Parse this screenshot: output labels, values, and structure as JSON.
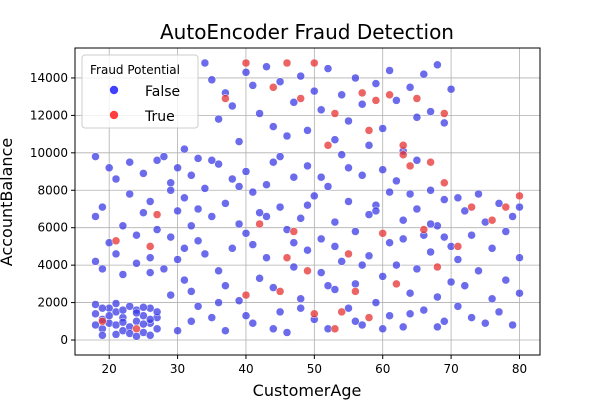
{
  "chart_data": {
    "type": "scatter",
    "title": "AutoEncoder Fraud Detection",
    "xlabel": "CustomerAge",
    "ylabel": "AccountBalance",
    "xlim": [
      15,
      83
    ],
    "ylim": [
      -800,
      15600
    ],
    "xticks": [
      20,
      30,
      40,
      50,
      60,
      70,
      80
    ],
    "yticks": [
      0,
      2000,
      4000,
      6000,
      8000,
      10000,
      12000,
      14000
    ],
    "grid": true,
    "legend": {
      "title": "Fraud Potential",
      "placement": "top-left",
      "entries": [
        {
          "label": "False",
          "color": "#0000ff"
        },
        {
          "label": "True",
          "color": "#ff0000"
        }
      ]
    },
    "colors": {
      "False": "#3a3ae6",
      "True": "#e63030",
      "edge": "#ffffff"
    },
    "series": [
      {
        "name": "False",
        "points": [
          [
            18,
            800
          ],
          [
            18,
            1400
          ],
          [
            19,
            600
          ],
          [
            19,
            1100
          ],
          [
            20,
            1700
          ],
          [
            20,
            900
          ],
          [
            21,
            300
          ],
          [
            21,
            1500
          ],
          [
            22,
            1200
          ],
          [
            22,
            500
          ],
          [
            23,
            1800
          ],
          [
            23,
            700
          ],
          [
            24,
            1000
          ],
          [
            24,
            1600
          ],
          [
            25,
            400
          ],
          [
            25,
            1300
          ],
          [
            26,
            900
          ],
          [
            26,
            1700
          ],
          [
            27,
            600
          ],
          [
            27,
            1200
          ],
          [
            18,
            1900
          ],
          [
            19,
            250
          ],
          [
            20,
            1300
          ],
          [
            21,
            800
          ],
          [
            22,
            1600
          ],
          [
            23,
            350
          ],
          [
            24,
            1450
          ],
          [
            25,
            850
          ],
          [
            26,
            250
          ],
          [
            27,
            1500
          ],
          [
            21,
            1950
          ],
          [
            24,
            200
          ],
          [
            26,
            1100
          ],
          [
            19,
            1700
          ],
          [
            22,
            950
          ],
          [
            25,
            1750
          ],
          [
            18,
            4200
          ],
          [
            18,
            6600
          ],
          [
            18,
            9800
          ],
          [
            19,
            3800
          ],
          [
            19,
            7100
          ],
          [
            20,
            5200
          ],
          [
            20,
            9200
          ],
          [
            21,
            4600
          ],
          [
            21,
            8600
          ],
          [
            22,
            6100
          ],
          [
            22,
            3500
          ],
          [
            23,
            7800
          ],
          [
            23,
            9500
          ],
          [
            24,
            5600
          ],
          [
            24,
            4100
          ],
          [
            25,
            6800
          ],
          [
            25,
            8900
          ],
          [
            26,
            4400
          ],
          [
            26,
            7400
          ],
          [
            27,
            5900
          ],
          [
            27,
            9600
          ],
          [
            26,
            3600
          ],
          [
            28,
            9800
          ],
          [
            28,
            3800
          ],
          [
            29,
            8400
          ],
          [
            29,
            5500
          ],
          [
            29,
            2400
          ],
          [
            30,
            9200
          ],
          [
            30,
            6900
          ],
          [
            30,
            4300
          ],
          [
            31,
            10200
          ],
          [
            31,
            7600
          ],
          [
            31,
            3200
          ],
          [
            32,
            8800
          ],
          [
            32,
            6100
          ],
          [
            32,
            2600
          ],
          [
            33,
            9700
          ],
          [
            33,
            5300
          ],
          [
            33,
            1800
          ],
          [
            34,
            14800
          ],
          [
            34,
            8100
          ],
          [
            34,
            4600
          ],
          [
            35,
            13900
          ],
          [
            35,
            6600
          ],
          [
            35,
            1200
          ],
          [
            36,
            11800
          ],
          [
            36,
            9400
          ],
          [
            36,
            3700
          ],
          [
            37,
            13200
          ],
          [
            37,
            7300
          ],
          [
            37,
            500
          ],
          [
            38,
            12500
          ],
          [
            38,
            8600
          ],
          [
            38,
            4900
          ],
          [
            39,
            10600
          ],
          [
            39,
            6200
          ],
          [
            39,
            2100
          ],
          [
            40,
            14300
          ],
          [
            40,
            9000
          ],
          [
            40,
            5700
          ],
          [
            41,
            13600
          ],
          [
            41,
            7900
          ],
          [
            41,
            900
          ],
          [
            42,
            12100
          ],
          [
            42,
            6800
          ],
          [
            42,
            3300
          ],
          [
            43,
            14600
          ],
          [
            43,
            8300
          ],
          [
            43,
            4400
          ],
          [
            44,
            11400
          ],
          [
            44,
            9500
          ],
          [
            44,
            2800
          ],
          [
            45,
            13800
          ],
          [
            45,
            7100
          ],
          [
            45,
            1500
          ],
          [
            46,
            10900
          ],
          [
            46,
            5900
          ],
          [
            46,
            400
          ],
          [
            47,
            12700
          ],
          [
            47,
            8700
          ],
          [
            47,
            3900
          ],
          [
            48,
            14100
          ],
          [
            48,
            6500
          ],
          [
            48,
            2200
          ],
          [
            49,
            11200
          ],
          [
            49,
            9300
          ],
          [
            49,
            4800
          ],
          [
            50,
            13300
          ],
          [
            50,
            7700
          ],
          [
            50,
            1100
          ],
          [
            51,
            12300
          ],
          [
            51,
            5400
          ],
          [
            51,
            3600
          ],
          [
            52,
            14500
          ],
          [
            52,
            8200
          ],
          [
            52,
            600
          ],
          [
            53,
            10700
          ],
          [
            53,
            6300
          ],
          [
            53,
            2700
          ],
          [
            54,
            13100
          ],
          [
            54,
            9900
          ],
          [
            54,
            4200
          ],
          [
            55,
            11700
          ],
          [
            55,
            7400
          ],
          [
            55,
            1700
          ],
          [
            56,
            14000
          ],
          [
            56,
            5800
          ],
          [
            56,
            3000
          ],
          [
            57,
            12600
          ],
          [
            57,
            8800
          ],
          [
            57,
            800
          ],
          [
            58,
            10400
          ],
          [
            58,
            6700
          ],
          [
            58,
            4500
          ],
          [
            59,
            13700
          ],
          [
            59,
            7200
          ],
          [
            59,
            2000
          ],
          [
            60,
            11300
          ],
          [
            60,
            9100
          ],
          [
            60,
            3400
          ],
          [
            61,
            14400
          ],
          [
            61,
            5200
          ],
          [
            61,
            1300
          ],
          [
            62,
            12800
          ],
          [
            62,
            8500
          ],
          [
            62,
            4000
          ],
          [
            63,
            10100
          ],
          [
            63,
            6400
          ],
          [
            63,
            700
          ],
          [
            64,
            13500
          ],
          [
            64,
            7800
          ],
          [
            64,
            2500
          ],
          [
            65,
            11900
          ],
          [
            65,
            9600
          ],
          [
            65,
            3800
          ],
          [
            66,
            14200
          ],
          [
            66,
            5600
          ],
          [
            66,
            1600
          ],
          [
            67,
            12200
          ],
          [
            67,
            8000
          ],
          [
            67,
            4700
          ],
          [
            68,
            14700
          ],
          [
            68,
            6100
          ],
          [
            68,
            2300
          ],
          [
            69,
            11600
          ],
          [
            69,
            7500
          ],
          [
            69,
            1000
          ],
          [
            70,
            13400
          ],
          [
            70,
            5000
          ],
          [
            70,
            3100
          ],
          [
            71,
            7600
          ],
          [
            71,
            4300
          ],
          [
            71,
            1800
          ],
          [
            72,
            6900
          ],
          [
            72,
            2900
          ],
          [
            73,
            5600
          ],
          [
            73,
            1200
          ],
          [
            74,
            7800
          ],
          [
            74,
            3700
          ],
          [
            75,
            6300
          ],
          [
            75,
            900
          ],
          [
            76,
            4900
          ],
          [
            76,
            2200
          ],
          [
            77,
            7300
          ],
          [
            77,
            1500
          ],
          [
            78,
            5800
          ],
          [
            78,
            3200
          ],
          [
            79,
            6600
          ],
          [
            79,
            800
          ],
          [
            80,
            4400
          ],
          [
            80,
            2500
          ],
          [
            80,
            7100
          ],
          [
            29,
            8000
          ],
          [
            31,
            4900
          ],
          [
            33,
            7000
          ],
          [
            35,
            9600
          ],
          [
            37,
            2900
          ],
          [
            39,
            8200
          ],
          [
            41,
            5100
          ],
          [
            43,
            6600
          ],
          [
            45,
            9800
          ],
          [
            47,
            5200
          ],
          [
            49,
            7200
          ],
          [
            51,
            8700
          ],
          [
            53,
            5000
          ],
          [
            55,
            9200
          ],
          [
            57,
            4000
          ],
          [
            59,
            6900
          ],
          [
            61,
            7900
          ],
          [
            63,
            5400
          ],
          [
            65,
            7000
          ],
          [
            67,
            6200
          ],
          [
            69,
            5500
          ],
          [
            32,
            1000
          ],
          [
            36,
            2000
          ],
          [
            40,
            1300
          ],
          [
            44,
            600
          ],
          [
            48,
            1700
          ],
          [
            52,
            2900
          ],
          [
            56,
            1000
          ],
          [
            60,
            600
          ],
          [
            64,
            1400
          ],
          [
            68,
            700
          ],
          [
            30,
            500
          ]
        ]
      },
      {
        "name": "True",
        "points": [
          [
            19,
            1000
          ],
          [
            21,
            5300
          ],
          [
            24,
            600
          ],
          [
            26,
            5000
          ],
          [
            27,
            6700
          ],
          [
            37,
            12900
          ],
          [
            40,
            14800
          ],
          [
            42,
            6200
          ],
          [
            44,
            13500
          ],
          [
            46,
            14800
          ],
          [
            47,
            5800
          ],
          [
            48,
            12900
          ],
          [
            50,
            14800
          ],
          [
            52,
            10400
          ],
          [
            53,
            12100
          ],
          [
            55,
            4600
          ],
          [
            57,
            13200
          ],
          [
            58,
            11200
          ],
          [
            59,
            12800
          ],
          [
            60,
            5700
          ],
          [
            61,
            13100
          ],
          [
            62,
            3000
          ],
          [
            63,
            9900
          ],
          [
            63,
            10400
          ],
          [
            64,
            9300
          ],
          [
            65,
            12900
          ],
          [
            66,
            5900
          ],
          [
            67,
            9500
          ],
          [
            68,
            3900
          ],
          [
            69,
            8400
          ],
          [
            69,
            12100
          ],
          [
            71,
            5000
          ],
          [
            73,
            7100
          ],
          [
            76,
            6400
          ],
          [
            78,
            7100
          ],
          [
            80,
            7700
          ],
          [
            40,
            2400
          ],
          [
            45,
            2600
          ],
          [
            50,
            1400
          ],
          [
            54,
            1500
          ],
          [
            56,
            2600
          ],
          [
            58,
            1200
          ],
          [
            53,
            600
          ],
          [
            46,
            4400
          ],
          [
            49,
            3700
          ]
        ]
      }
    ]
  }
}
